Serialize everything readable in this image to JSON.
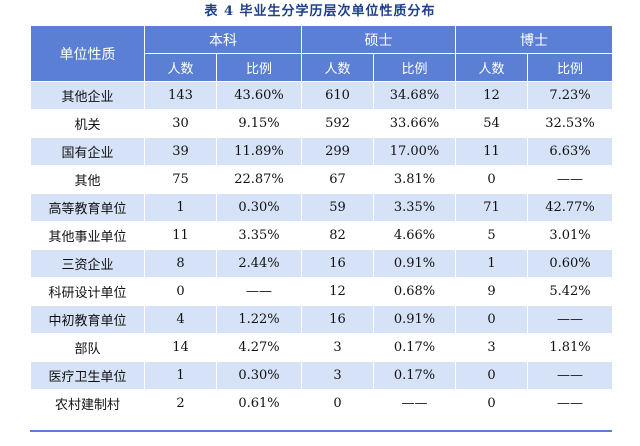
{
  "caption": "表 4   毕业生分学历层次单位性质分布",
  "header": {
    "category": "单位性质",
    "groups": [
      "本科",
      "硕士",
      "博士"
    ],
    "count_label": "人数",
    "ratio_label": "比例"
  },
  "rows": [
    {
      "name": "其他企业",
      "cells": [
        "143",
        "43.60%",
        "610",
        "34.68%",
        "12",
        "7.23%"
      ]
    },
    {
      "name": "机关",
      "cells": [
        "30",
        "9.15%",
        "592",
        "33.66%",
        "54",
        "32.53%"
      ]
    },
    {
      "name": "国有企业",
      "cells": [
        "39",
        "11.89%",
        "299",
        "17.00%",
        "11",
        "6.63%"
      ]
    },
    {
      "name": "其他",
      "cells": [
        "75",
        "22.87%",
        "67",
        "3.81%",
        "0",
        "——"
      ]
    },
    {
      "name": "高等教育单位",
      "cells": [
        "1",
        "0.30%",
        "59",
        "3.35%",
        "71",
        "42.77%"
      ]
    },
    {
      "name": "其他事业单位",
      "cells": [
        "11",
        "3.35%",
        "82",
        "4.66%",
        "5",
        "3.01%"
      ]
    },
    {
      "name": "三资企业",
      "cells": [
        "8",
        "2.44%",
        "16",
        "0.91%",
        "1",
        "0.60%"
      ]
    },
    {
      "name": "科研设计单位",
      "cells": [
        "0",
        "——",
        "12",
        "0.68%",
        "9",
        "5.42%"
      ]
    },
    {
      "name": "中初教育单位",
      "cells": [
        "4",
        "1.22%",
        "16",
        "0.91%",
        "0",
        "——"
      ]
    },
    {
      "name": "部队",
      "cells": [
        "14",
        "4.27%",
        "3",
        "0.17%",
        "3",
        "1.81%"
      ]
    },
    {
      "name": "医疗卫生单位",
      "cells": [
        "1",
        "0.30%",
        "3",
        "0.17%",
        "0",
        "——"
      ]
    },
    {
      "name": "农村建制村",
      "cells": [
        "2",
        "0.61%",
        "0",
        "——",
        "0",
        "——"
      ]
    }
  ],
  "colors": {
    "header_bg": "#5a7fd4",
    "stripe_bg": "#d6e2f7",
    "caption": "#1c3f8a"
  }
}
